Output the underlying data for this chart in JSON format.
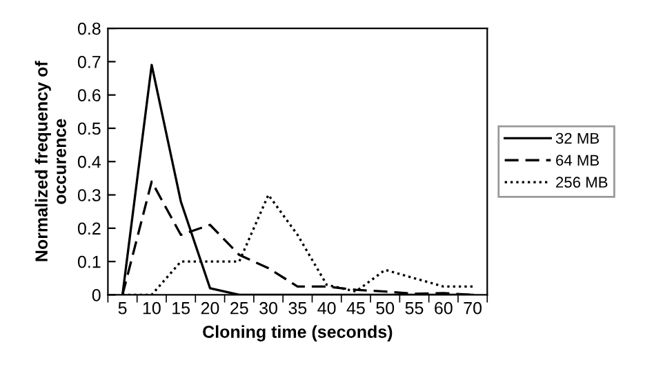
{
  "chart_data": {
    "type": "line",
    "xlabel": "Cloning time (seconds)",
    "ylabel": "Normalized frequency of\noccurence",
    "categories": [
      "5",
      "10",
      "15",
      "20",
      "25",
      "30",
      "35",
      "40",
      "45",
      "50",
      "55",
      "60",
      "70"
    ],
    "series": [
      {
        "name": "32 MB",
        "color": "#000000",
        "line_style": "solid",
        "values": [
          0,
          0.69,
          0.28,
          0.02,
          0,
          0,
          0,
          0,
          0,
          0,
          0,
          0,
          0
        ]
      },
      {
        "name": "64 MB",
        "color": "#000000",
        "line_style": "dashed",
        "values": [
          0,
          0.34,
          0.18,
          0.21,
          0.12,
          0.08,
          0.025,
          0.025,
          0.015,
          0.01,
          0.003,
          0.005,
          0
        ]
      },
      {
        "name": "256 MB",
        "color": "#000000",
        "line_style": "dotted",
        "values": [
          0,
          0,
          0.1,
          0.1,
          0.1,
          0.3,
          0.18,
          0.03,
          0.01,
          0.075,
          0.05,
          0.025,
          0.025
        ]
      }
    ],
    "ylim": [
      0,
      0.8
    ],
    "yticks": [
      0,
      0.1,
      0.2,
      0.3,
      0.4,
      0.5,
      0.6,
      0.7,
      0.8
    ],
    "grid": false,
    "legend": "right",
    "marker": "none"
  }
}
